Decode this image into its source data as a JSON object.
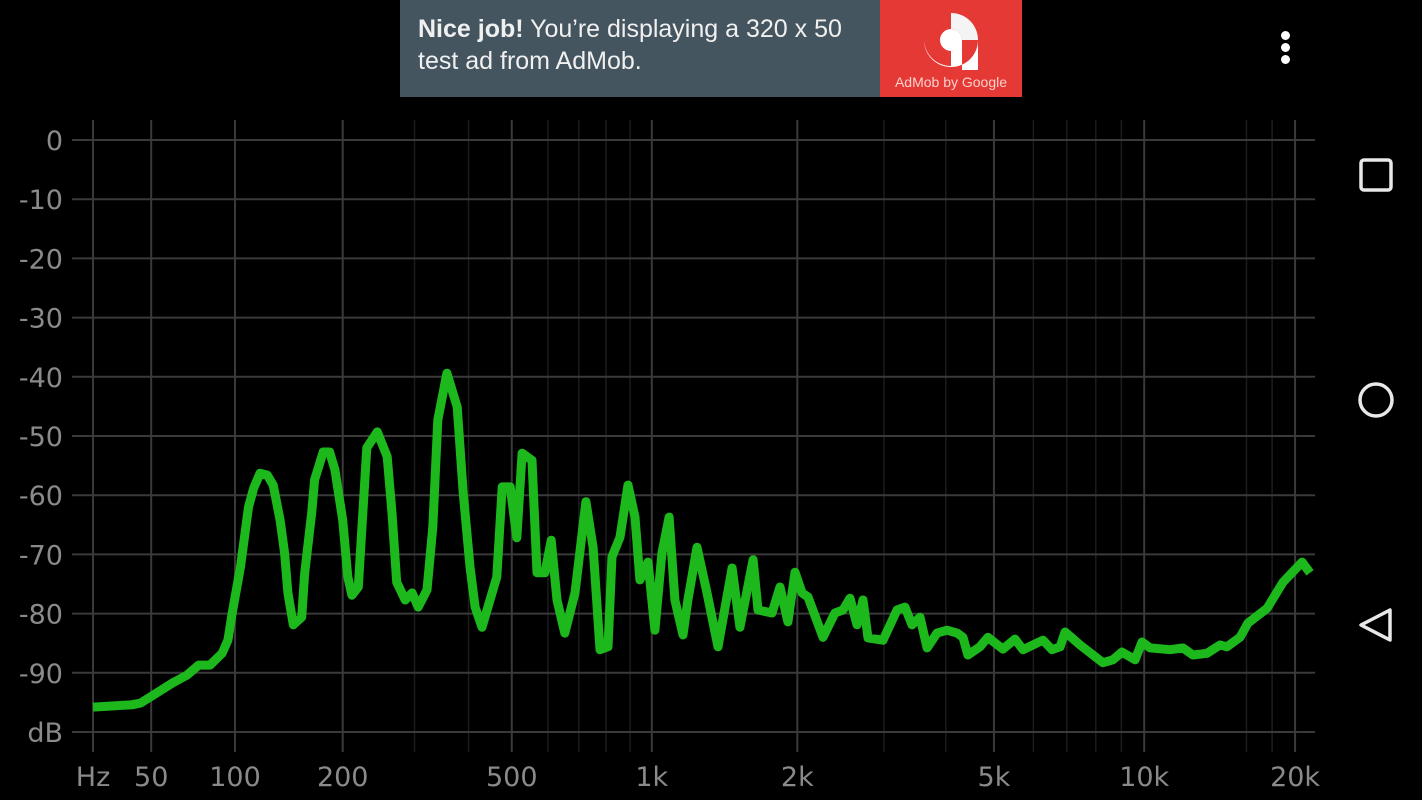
{
  "ad": {
    "headline": "Nice job!",
    "body": " You’re displaying a 320 x 50 test ad from AdMob.",
    "logo_caption": "AdMob by Google",
    "background": "#455560",
    "logo_color": "#e53935"
  },
  "toolbar": {
    "menu_icon": "more-vert-icon"
  },
  "navbar": {
    "icons": [
      "recents-square-icon",
      "home-circle-icon",
      "back-triangle-icon"
    ]
  },
  "chart_data": {
    "type": "line",
    "title": "",
    "xlabel": "Hz",
    "ylabel": "dB",
    "x_scale": "log-like (frequency)",
    "xlim": [
      25,
      22050
    ],
    "ylim": [
      -100,
      0
    ],
    "grid": true,
    "background": "#000000",
    "line_color": "#1cb81c",
    "grid_color": "#3a3a3a",
    "x_ticks": [
      {
        "value": 25,
        "label": "Hz"
      },
      {
        "value": 50,
        "label": "50"
      },
      {
        "value": 100,
        "label": "100"
      },
      {
        "value": 200,
        "label": "200"
      },
      {
        "value": 500,
        "label": "500"
      },
      {
        "value": 1000,
        "label": "1k"
      },
      {
        "value": 2000,
        "label": "2k"
      },
      {
        "value": 5000,
        "label": "5k"
      },
      {
        "value": 10000,
        "label": "10k"
      },
      {
        "value": 20000,
        "label": "20k"
      }
    ],
    "x_minor_ticks": [
      300,
      400,
      600,
      700,
      800,
      900,
      3000,
      4000,
      6000,
      7000,
      8000,
      9000,
      16000,
      18000
    ],
    "y_ticks": [
      {
        "value": 0,
        "label": "0"
      },
      {
        "value": -10,
        "label": "-10"
      },
      {
        "value": -20,
        "label": "-20"
      },
      {
        "value": -30,
        "label": "-30"
      },
      {
        "value": -40,
        "label": "-40"
      },
      {
        "value": -50,
        "label": "-50"
      },
      {
        "value": -60,
        "label": "-60"
      },
      {
        "value": -70,
        "label": "-70"
      },
      {
        "value": -80,
        "label": "-80"
      },
      {
        "value": -90,
        "label": "-90"
      },
      {
        "value": -100,
        "label": "dB"
      }
    ],
    "series": [
      {
        "points": [
          [
            25,
            -95.8
          ],
          [
            41,
            -95.4
          ],
          [
            45,
            -95.1
          ],
          [
            61,
            -91.7
          ],
          [
            69,
            -90.4
          ],
          [
            76,
            -88.7
          ],
          [
            83,
            -88.7
          ],
          [
            91,
            -86.7
          ],
          [
            95,
            -84.5
          ],
          [
            98,
            -79.9
          ],
          [
            104,
            -72.1
          ],
          [
            110,
            -62
          ],
          [
            114,
            -58.8
          ],
          [
            119,
            -56.3
          ],
          [
            125,
            -56.6
          ],
          [
            130,
            -58.3
          ],
          [
            136,
            -64.2
          ],
          [
            140,
            -69.8
          ],
          [
            143,
            -76.5
          ],
          [
            148,
            -81.9
          ],
          [
            156,
            -80.6
          ],
          [
            159,
            -73.1
          ],
          [
            166,
            -63
          ],
          [
            169,
            -57.4
          ],
          [
            178,
            -52.7
          ],
          [
            185,
            -52.7
          ],
          [
            191,
            -55.7
          ],
          [
            200,
            -64.2
          ],
          [
            206,
            -73.8
          ],
          [
            211,
            -76.9
          ],
          [
            219,
            -75.5
          ],
          [
            225,
            -62.5
          ],
          [
            230,
            -52
          ],
          [
            244,
            -49.3
          ],
          [
            258,
            -53.5
          ],
          [
            265,
            -63
          ],
          [
            272,
            -74.7
          ],
          [
            285,
            -77.7
          ],
          [
            296,
            -76.5
          ],
          [
            306,
            -78.9
          ],
          [
            321,
            -76
          ],
          [
            331,
            -65.4
          ],
          [
            340,
            -47.3
          ],
          [
            357,
            -39.4
          ],
          [
            377,
            -45.1
          ],
          [
            389,
            -59.6
          ],
          [
            403,
            -72.1
          ],
          [
            414,
            -78.9
          ],
          [
            429,
            -82.3
          ],
          [
            463,
            -73.8
          ],
          [
            476,
            -58.6
          ],
          [
            496,
            -58.6
          ],
          [
            513,
            -67.2
          ],
          [
            527,
            -52.9
          ],
          [
            554,
            -54.1
          ],
          [
            568,
            -73.1
          ],
          [
            591,
            -73.1
          ],
          [
            610,
            -67.6
          ],
          [
            628,
            -77.7
          ],
          [
            653,
            -83.3
          ],
          [
            687,
            -76.5
          ],
          [
            725,
            -61.1
          ],
          [
            751,
            -68.8
          ],
          [
            777,
            -86.1
          ],
          [
            808,
            -85.6
          ],
          [
            824,
            -70.4
          ],
          [
            857,
            -67.1
          ],
          [
            891,
            -58.3
          ],
          [
            922,
            -63.7
          ],
          [
            944,
            -74.3
          ],
          [
            982,
            -71.3
          ],
          [
            1015,
            -82.8
          ],
          [
            1050,
            -69.8
          ],
          [
            1087,
            -63.7
          ],
          [
            1118,
            -77.7
          ],
          [
            1162,
            -83.6
          ],
          [
            1190,
            -77.7
          ],
          [
            1243,
            -68.8
          ],
          [
            1304,
            -76.5
          ],
          [
            1374,
            -85.6
          ],
          [
            1469,
            -72.3
          ],
          [
            1525,
            -82.3
          ],
          [
            1623,
            -70.9
          ],
          [
            1661,
            -79.4
          ],
          [
            1775,
            -79.9
          ],
          [
            1843,
            -75.5
          ],
          [
            1913,
            -81.4
          ],
          [
            1978,
            -73
          ],
          [
            2045,
            -76.5
          ],
          [
            2103,
            -77.2
          ],
          [
            2256,
            -84
          ],
          [
            2386,
            -79.9
          ],
          [
            2478,
            -79.4
          ],
          [
            2560,
            -77.4
          ],
          [
            2646,
            -81.9
          ],
          [
            2721,
            -77.7
          ],
          [
            2785,
            -84.1
          ],
          [
            2987,
            -84.5
          ],
          [
            3189,
            -79.4
          ],
          [
            3309,
            -78.9
          ],
          [
            3419,
            -81.9
          ],
          [
            3548,
            -80.6
          ],
          [
            3667,
            -85.8
          ],
          [
            3841,
            -83.3
          ],
          [
            4023,
            -82.8
          ],
          [
            4215,
            -83.3
          ],
          [
            4333,
            -84
          ],
          [
            4433,
            -87
          ],
          [
            4686,
            -85.6
          ],
          [
            4863,
            -84
          ],
          [
            5213,
            -86
          ],
          [
            5513,
            -84.3
          ],
          [
            5719,
            -86.1
          ],
          [
            6272,
            -84.5
          ],
          [
            6540,
            -86.1
          ],
          [
            6787,
            -85.6
          ],
          [
            6945,
            -83.1
          ],
          [
            7443,
            -85.3
          ],
          [
            8270,
            -88.3
          ],
          [
            8660,
            -87.8
          ],
          [
            9029,
            -86.5
          ],
          [
            9588,
            -87.8
          ],
          [
            9900,
            -84.8
          ],
          [
            10272,
            -85.8
          ],
          [
            11263,
            -86.1
          ],
          [
            11950,
            -85.8
          ],
          [
            12512,
            -87
          ],
          [
            13348,
            -86.7
          ],
          [
            14172,
            -85.3
          ],
          [
            14633,
            -85.6
          ],
          [
            15533,
            -84
          ],
          [
            16114,
            -81.6
          ],
          [
            17590,
            -79.1
          ],
          [
            18924,
            -74.7
          ],
          [
            20651,
            -71.3
          ],
          [
            21421,
            -73.1
          ]
        ]
      }
    ]
  }
}
